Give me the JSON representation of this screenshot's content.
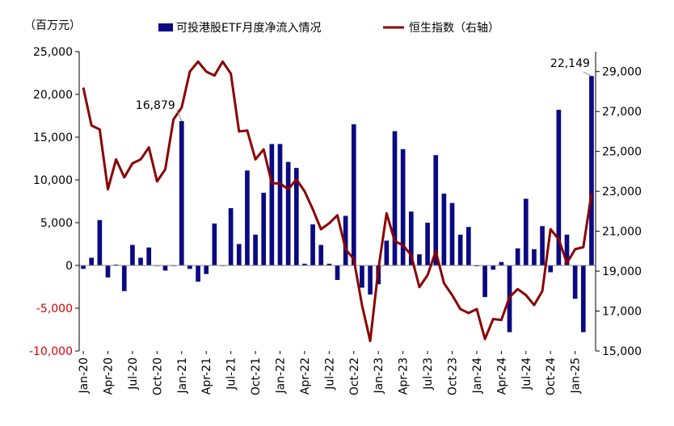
{
  "chart_data": {
    "type": "bar+line",
    "left_axis_unit": "（百万元）",
    "ylim_left": [
      -10000,
      25000
    ],
    "yticks_left": [
      -10000,
      -5000,
      0,
      5000,
      10000,
      15000,
      20000,
      25000
    ],
    "ytick_labels_left": [
      "-10,000",
      "-5,000",
      "0",
      "5,000",
      "10,000",
      "15,000",
      "20,000",
      "25,000"
    ],
    "ylim_right": [
      15000,
      30000
    ],
    "yticks_right": [
      15000,
      17000,
      19000,
      21000,
      23000,
      25000,
      27000,
      29000
    ],
    "ytick_labels_right": [
      "15,000",
      "17,000",
      "19,000",
      "21,000",
      "23,000",
      "25,000",
      "27,000",
      "29,000"
    ],
    "xtick_labels": [
      "Jan-20",
      "Apr-20",
      "Jul-20",
      "Oct-20",
      "Jan-21",
      "Apr-21",
      "Jul-21",
      "Oct-21",
      "Jan-22",
      "Apr-22",
      "Jul-22",
      "Oct-22",
      "Jan-23",
      "Apr-23",
      "Jul-23",
      "Oct-23",
      "Jan-24",
      "Apr-24",
      "Jul-24",
      "Oct-24",
      "Jan-25"
    ],
    "legend_position": "top",
    "colors": {
      "bars": "#0a0a82",
      "line": "#8b0000",
      "negative_ticks": "#e00000"
    },
    "series": [
      {
        "name": "可投港股ETF月度净流入情况",
        "type": "bar",
        "axis": "left",
        "values": [
          -400,
          900,
          5300,
          -1400,
          100,
          -3000,
          2400,
          900,
          2100,
          0,
          -600,
          0,
          16879,
          -400,
          -1900,
          -1000,
          4900,
          0,
          6700,
          2500,
          11100,
          3600,
          8500,
          14200,
          14200,
          12100,
          11400,
          200,
          4800,
          2400,
          200,
          -1700,
          5800,
          16500,
          -2600,
          -3400,
          -2200,
          2900,
          15700,
          13600,
          6300,
          1300,
          5000,
          12900,
          8400,
          7300,
          3600,
          4500,
          -100,
          -3700,
          -500,
          400,
          -7800,
          2000,
          7800,
          1900,
          4600,
          -800,
          18200,
          3600,
          -3900,
          -7800,
          22149
        ]
      },
      {
        "name": "恒生指数（右轴）",
        "type": "line",
        "axis": "right",
        "values": [
          28200,
          26300,
          26100,
          23100,
          24600,
          23700,
          24400,
          24600,
          25200,
          23500,
          24100,
          26600,
          27200,
          29000,
          29500,
          29000,
          28800,
          29500,
          28900,
          26000,
          26050,
          24600,
          25100,
          23400,
          23400,
          23100,
          23600,
          23000,
          22100,
          21100,
          21400,
          21800,
          20100,
          19600,
          17300,
          15500,
          19100,
          21900,
          20500,
          20300,
          19800,
          18200,
          18800,
          20000,
          18400,
          17800,
          17100,
          16900,
          17100,
          15600,
          16600,
          16550,
          17700,
          18100,
          17800,
          17300,
          18000,
          21100,
          20600,
          19400,
          20100,
          20200,
          22900
        ]
      }
    ],
    "annotations": [
      {
        "text": "16,879",
        "series": 0,
        "index": 12
      },
      {
        "text": "22,149",
        "series": 0,
        "index": 62
      }
    ]
  }
}
